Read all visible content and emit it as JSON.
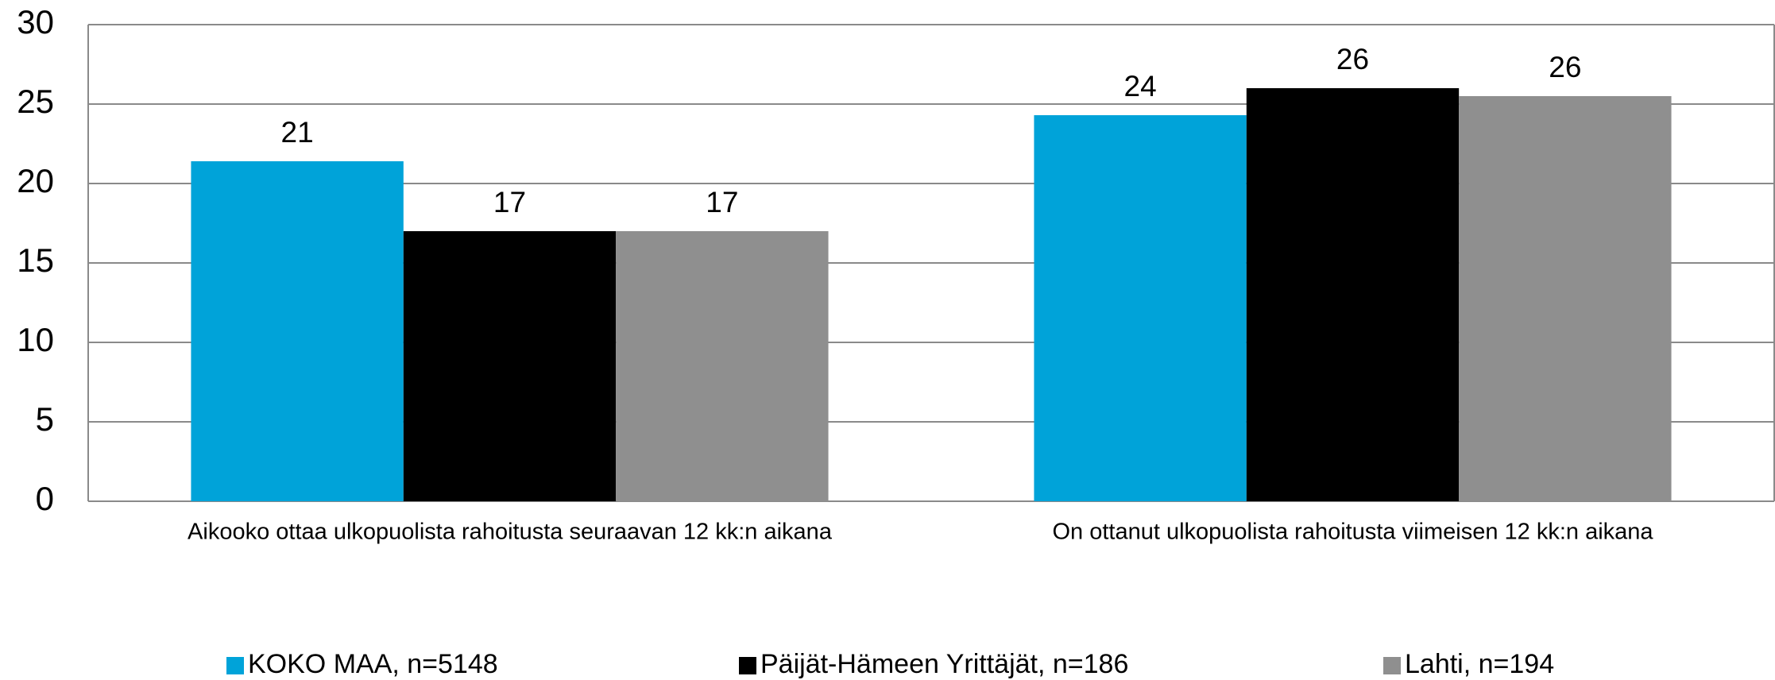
{
  "chart_data": {
    "type": "bar",
    "categories": [
      "Aikooko ottaa ulkopuolista rahoitusta seuraavan 12 kk:n aikana",
      "On ottanut ulkopuolista rahoitusta viimeisen 12 kk:n aikana"
    ],
    "series": [
      {
        "name": "KOKO MAA, n=5148",
        "color": "#00a3d9",
        "values": [
          21.4,
          24.3
        ],
        "value_labels": [
          "21",
          "24"
        ]
      },
      {
        "name": "Päijät-Hämeen Yrittäjät, n=186",
        "color": "#000000",
        "values": [
          17,
          26
        ],
        "value_labels": [
          "17",
          "26"
        ]
      },
      {
        "name": "Lahti, n=194",
        "color": "#8f8f8f",
        "values": [
          17,
          25.5
        ],
        "value_labels": [
          "17",
          "26"
        ]
      }
    ],
    "ylim": [
      0,
      30
    ],
    "yticks": [
      0,
      5,
      10,
      15,
      20,
      25,
      30
    ],
    "grid": true,
    "legend": "bottom"
  }
}
